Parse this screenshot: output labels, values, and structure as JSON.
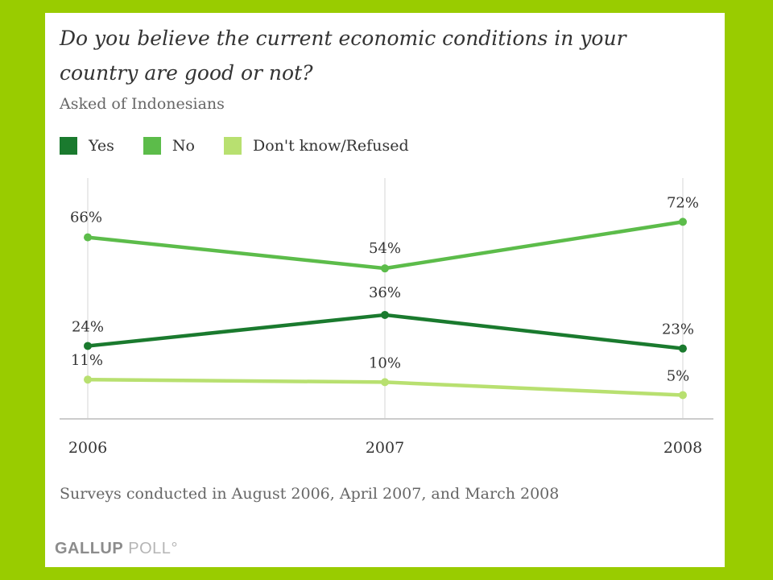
{
  "title": "Do you believe the current economic conditions in your country are good or not?",
  "subtitle": "Asked of Indonesians",
  "footnote": "Surveys conducted in August 2006, April 2007, and March 2008",
  "brand": {
    "part1": "GALLUP",
    "part2": "POLL",
    "mark": "°"
  },
  "colors": {
    "background": "#99cc00",
    "yes": "#1a7a2e",
    "no": "#5cbc4a",
    "dont_know": "#b8e070",
    "grid": "#dddddd",
    "axis": "#cccccc"
  },
  "chart_data": {
    "type": "line",
    "title": "Do you believe the current economic conditions in your country are good or not?",
    "subtitle": "Asked of Indonesians",
    "x": [
      "2006",
      "2007",
      "2008"
    ],
    "ylim": [
      0,
      80
    ],
    "grid": "vertical",
    "legend_position": "top-left",
    "series": [
      {
        "name": "Yes",
        "color": "#1a7a2e",
        "values": [
          24,
          36,
          23
        ],
        "labels": [
          "24%",
          "36%",
          "23%"
        ]
      },
      {
        "name": "No",
        "color": "#5cbc4a",
        "values": [
          66,
          54,
          72
        ],
        "labels": [
          "66%",
          "54%",
          "72%"
        ]
      },
      {
        "name": "Don't know/Refused",
        "color": "#b8e070",
        "values": [
          11,
          10,
          5
        ],
        "labels": [
          "11%",
          "10%",
          "5%"
        ]
      }
    ]
  }
}
